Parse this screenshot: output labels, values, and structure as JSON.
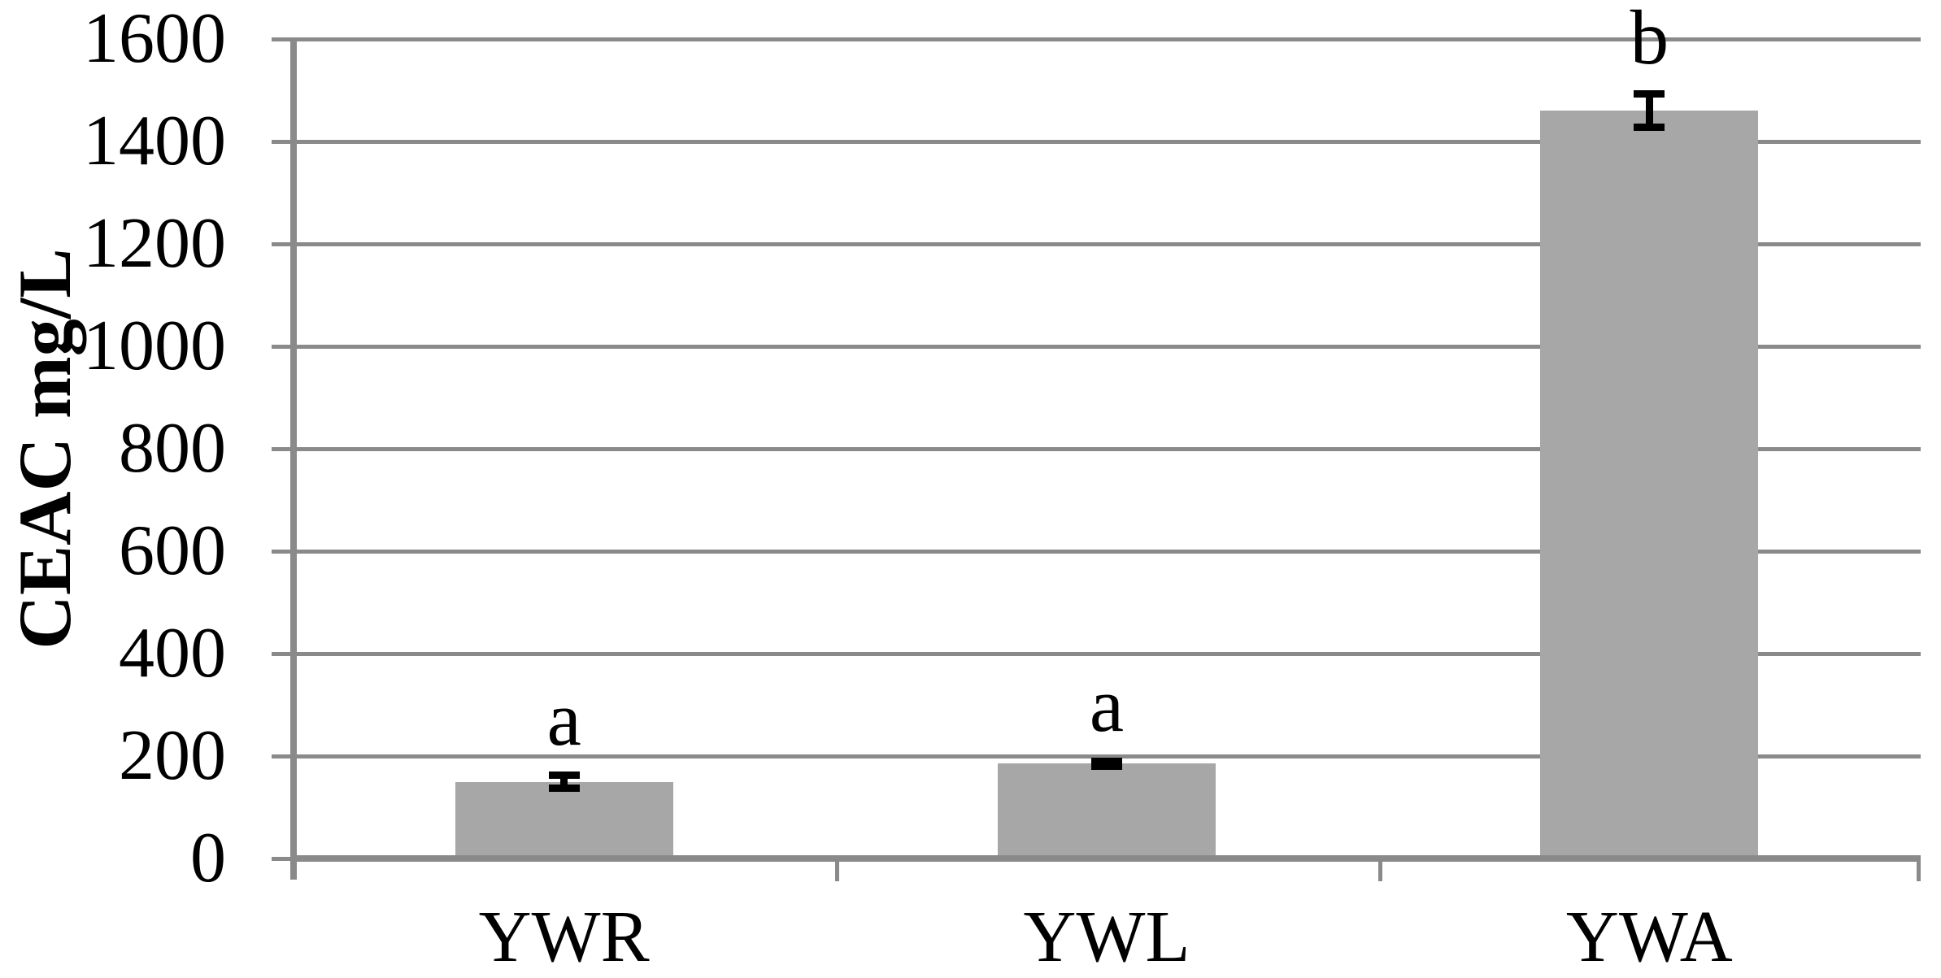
{
  "chart_data": {
    "type": "bar",
    "title": "",
    "xlabel": "",
    "ylabel": "CEAC mg/L",
    "categories": [
      "YWR",
      "YWL",
      "YWA"
    ],
    "values": [
      150,
      185,
      1460
    ],
    "error_bars": [
      20,
      12,
      40
    ],
    "point_labels": [
      "a",
      "a",
      "b"
    ],
    "ylim": [
      0,
      1600
    ],
    "yticks": [
      0,
      200,
      400,
      600,
      800,
      1000,
      1200,
      1400,
      1600
    ],
    "grid": "horizontal",
    "legend": "none",
    "colors": {
      "bar_fill": "#a7a7a7",
      "grid_line": "#8a8a8a",
      "axis_line": "#8a8a8a",
      "error_bar": "#000000",
      "text": "#000000",
      "background": "#ffffff"
    }
  }
}
